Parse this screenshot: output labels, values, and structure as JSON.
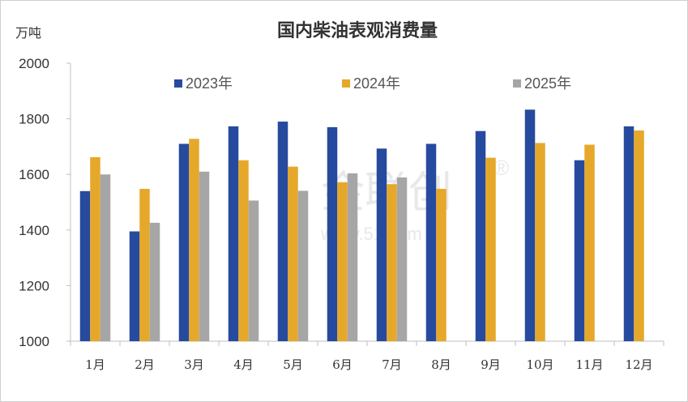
{
  "chart_data": {
    "type": "bar",
    "title": "国内柴油表观消费量",
    "ylabel": "万吨",
    "xlabel": "",
    "ylim": [
      1000,
      2000
    ],
    "yticks": [
      1000,
      1200,
      1400,
      1600,
      1800,
      2000
    ],
    "categories": [
      "1月",
      "2月",
      "3月",
      "4月",
      "5月",
      "6月",
      "7月",
      "8月",
      "9月",
      "10月",
      "11月",
      "12月"
    ],
    "legend_position": "top",
    "grid": false,
    "series": [
      {
        "name": "2023年",
        "color": "#264a9e",
        "values": [
          1540,
          1395,
          1710,
          1773,
          1790,
          1770,
          1693,
          1710,
          1756,
          1833,
          1651,
          1773
        ]
      },
      {
        "name": "2024年",
        "color": "#e6a82a",
        "values": [
          1662,
          1548,
          1728,
          1651,
          1628,
          1572,
          1565,
          1548,
          1660,
          1713,
          1707,
          1758
        ]
      },
      {
        "name": "2025年",
        "color": "#a6a6a6",
        "values": [
          1600,
          1426,
          1610,
          1506,
          1541,
          1604,
          1589,
          null,
          null,
          null,
          null,
          null
        ]
      }
    ]
  },
  "watermark": {
    "text": "金联创",
    "registered": "®",
    "url": "www.51.com"
  }
}
